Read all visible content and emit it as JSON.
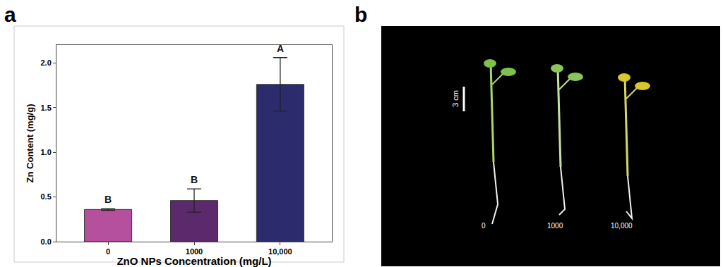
{
  "chart_data": {
    "type": "bar",
    "x_label": "ZnO NPs Concentration (mg/L)",
    "y_label": "Zn Content (mg/g)",
    "categories": [
      "0",
      "1000",
      "10,000"
    ],
    "values": [
      0.36,
      0.46,
      1.76
    ],
    "errors": [
      0.01,
      0.13,
      0.3
    ],
    "annotations": [
      "B",
      "B",
      "A"
    ],
    "colors": [
      "#b5509f",
      "#5c2a6c",
      "#2c2b6d"
    ],
    "ylim": [
      0,
      2.2
    ],
    "yticks": [
      {
        "value": 0,
        "label": "0.0"
      },
      {
        "value": 0.5,
        "label": "0.5"
      },
      {
        "value": 1,
        "label": "1.0"
      },
      {
        "value": 1.5,
        "label": "1.5"
      },
      {
        "value": 2,
        "label": "2.0"
      }
    ],
    "grid": false
  },
  "figure": {
    "panel_labels": [
      "a",
      "b"
    ],
    "photo": {
      "scale_bar": "3 cm",
      "labels": [
        "0",
        "1000",
        "10,000"
      ]
    }
  }
}
